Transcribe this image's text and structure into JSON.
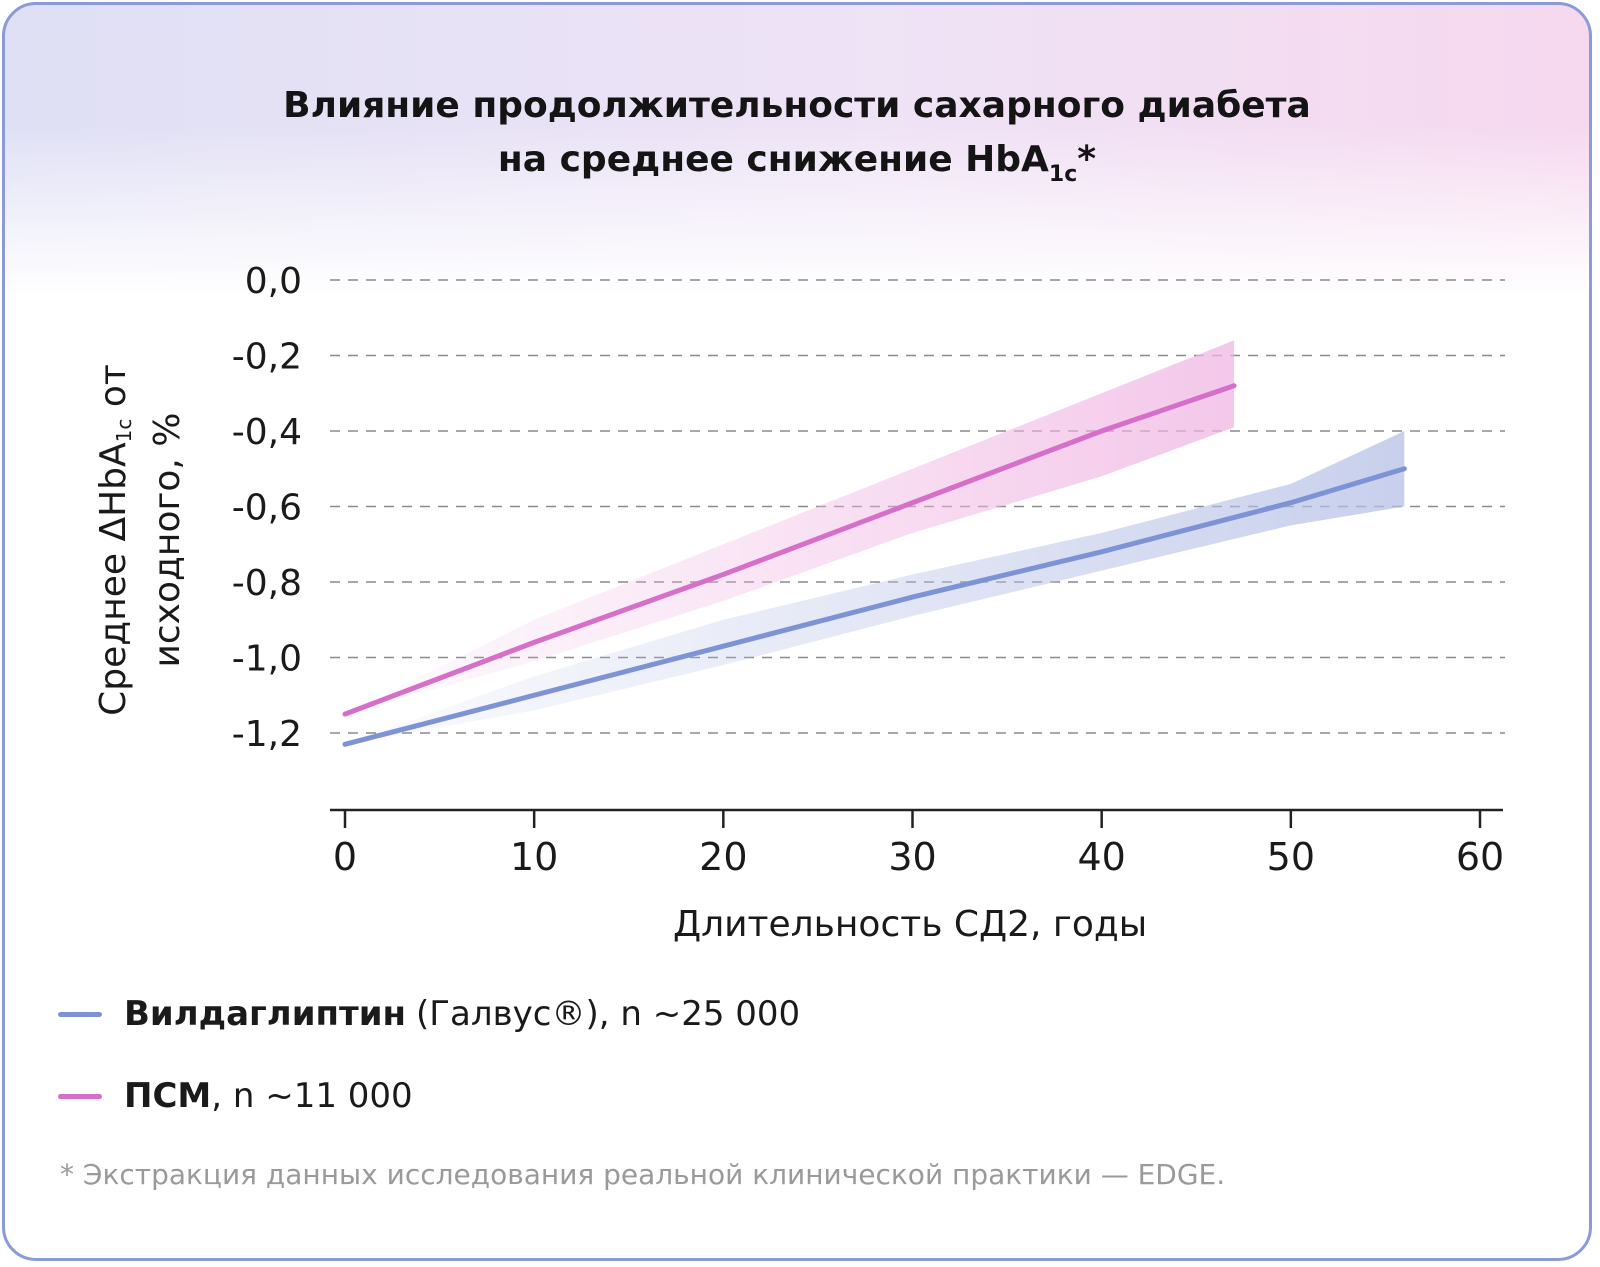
{
  "title": {
    "line1": "Влияние продолжительности сахарного диабета",
    "line2_prefix": "на среднее снижение HbA",
    "line2_sub": "1c",
    "line2_suffix": "*"
  },
  "chart_data": {
    "type": "line",
    "title": "Влияние продолжительности сахарного диабета на среднее снижение HbA1c*",
    "xlabel": "Длительность СД2, годы",
    "ylabel": {
      "prefix": "Среднее ΔHbA",
      "sub": "1c",
      "suffix": " от",
      "line2": "исходного, %"
    },
    "xlim": [
      0,
      60
    ],
    "ylim": [
      -1.2,
      0.0
    ],
    "xticks": [
      {
        "value": 0,
        "label": "0"
      },
      {
        "value": 10,
        "label": "10"
      },
      {
        "value": 20,
        "label": "20"
      },
      {
        "value": 30,
        "label": "30"
      },
      {
        "value": 40,
        "label": "40"
      },
      {
        "value": 50,
        "label": "50"
      },
      {
        "value": 60,
        "label": "60"
      }
    ],
    "yticks": [
      {
        "value": 0.0,
        "label": "0,0"
      },
      {
        "value": -0.2,
        "label": "-0,2"
      },
      {
        "value": -0.4,
        "label": "-0,4"
      },
      {
        "value": -0.6,
        "label": "-0,6"
      },
      {
        "value": -0.8,
        "label": "-0,8"
      },
      {
        "value": -1.0,
        "label": "-1,0"
      },
      {
        "value": -1.2,
        "label": "-1,2"
      }
    ],
    "grid": "horizontal dashed",
    "series": [
      {
        "name": "Вилдаглиптин",
        "color": "#7e93d6",
        "band_color": "#b6c0e6",
        "x": [
          0,
          10,
          20,
          30,
          40,
          50,
          56
        ],
        "y": [
          -1.23,
          -1.1,
          -0.97,
          -0.84,
          -0.72,
          -0.59,
          -0.5
        ],
        "upper": [
          -1.23,
          -1.05,
          -0.9,
          -0.78,
          -0.67,
          -0.54,
          -0.4
        ],
        "lower": [
          -1.23,
          -1.14,
          -1.02,
          -0.89,
          -0.77,
          -0.65,
          -0.6
        ]
      },
      {
        "name": "ПСМ",
        "color": "#d66fc8",
        "band_color": "#f0b5e3",
        "x": [
          0,
          10,
          20,
          30,
          40,
          47
        ],
        "y": [
          -1.15,
          -0.96,
          -0.78,
          -0.59,
          -0.4,
          -0.28
        ],
        "upper": [
          -1.15,
          -0.9,
          -0.7,
          -0.5,
          -0.3,
          -0.16
        ],
        "lower": [
          -1.15,
          -1.01,
          -0.85,
          -0.67,
          -0.52,
          -0.39
        ]
      }
    ]
  },
  "legend": [
    {
      "bold": "Вилдаглиптин",
      "rest": "(Галвус®), n ~25 000",
      "color": "#7e93d6"
    },
    {
      "bold": "ПСМ",
      "rest": ", n ~11 000",
      "color": "#d66fc8"
    }
  ],
  "footnote": "* Экстракция данных исследования реальной клинической практики — EDGE.",
  "colors": {
    "border": "#8b9ad8",
    "text": "#1a1a1a",
    "grid": "#8a8a8a"
  }
}
